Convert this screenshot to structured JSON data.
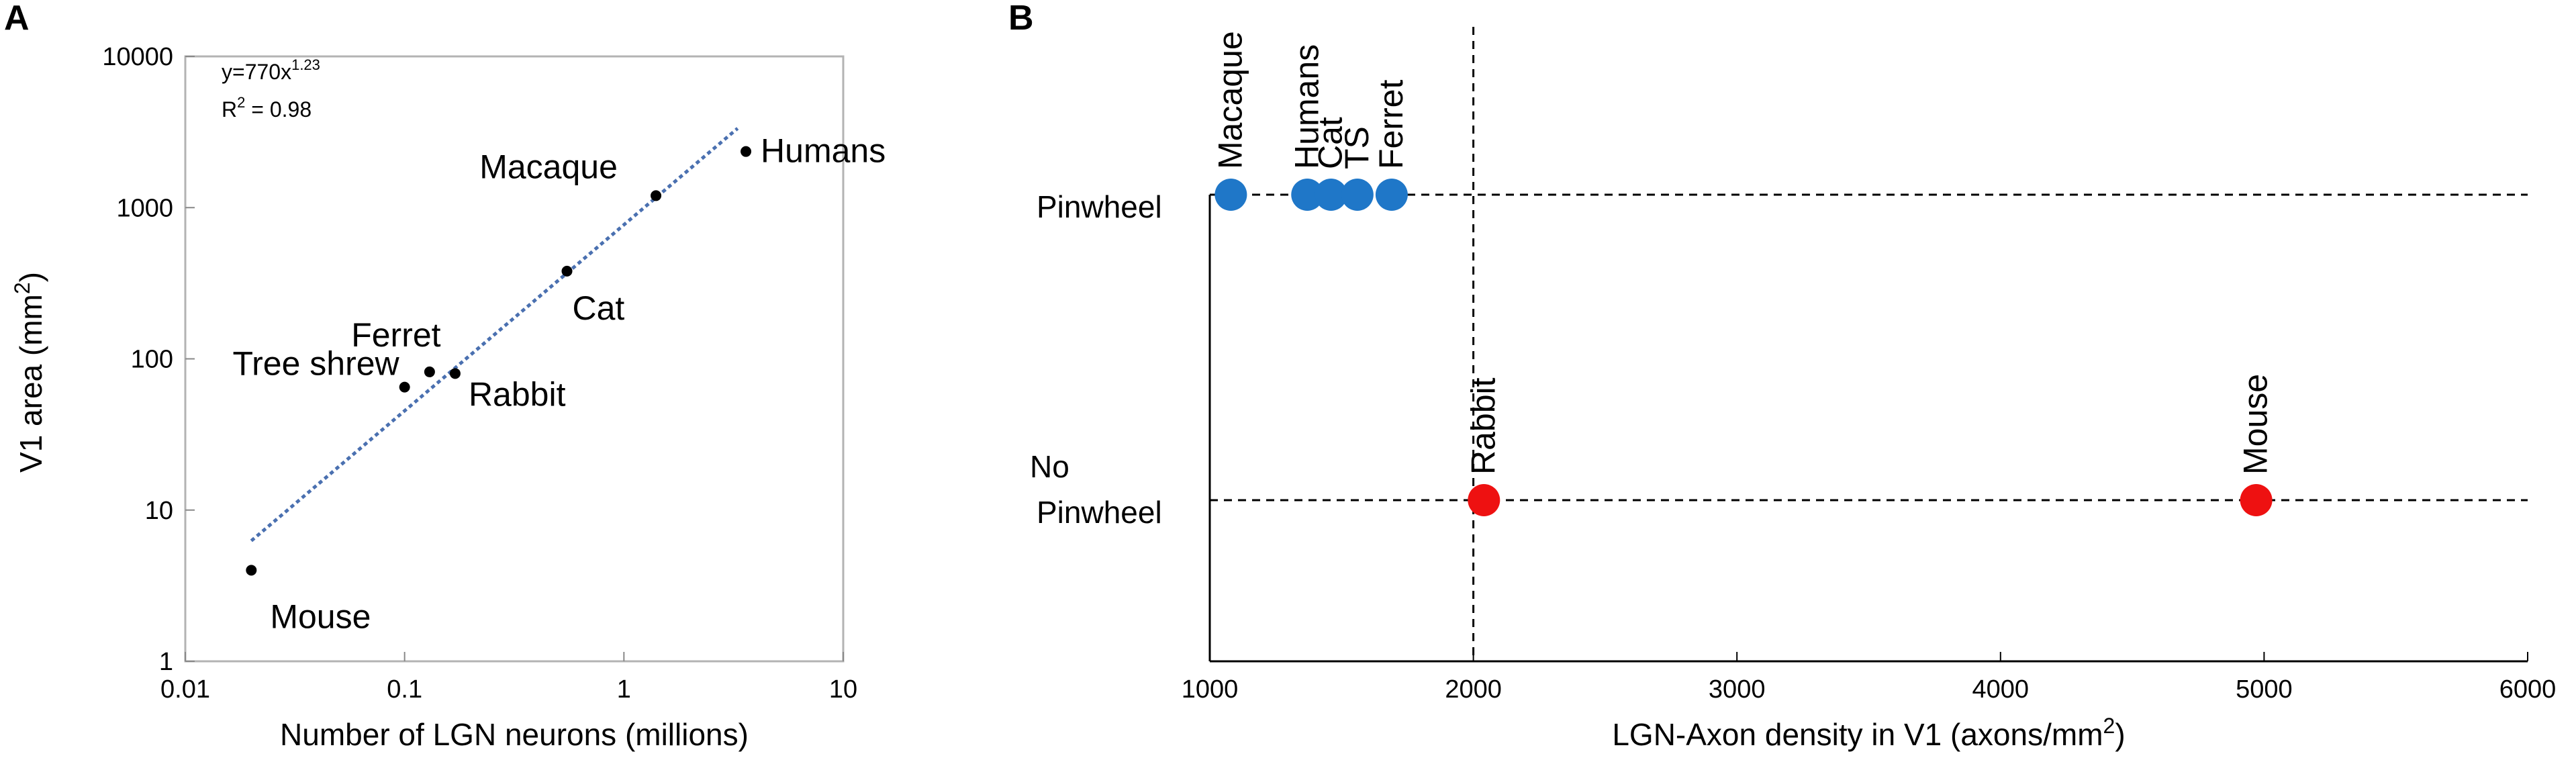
{
  "panels": {
    "a_label": "A",
    "b_label": "B"
  },
  "chart_data": [
    {
      "type": "scatter",
      "scale": "log-log",
      "xlabel": "Number of LGN neurons (millions)",
      "ylabel_main": "V1 area (mm",
      "ylabel_sup": "2",
      "ylabel_end": ")",
      "xlim": [
        0.01,
        10
      ],
      "ylim": [
        1,
        10000
      ],
      "x_ticks": [
        {
          "v": 0.01,
          "label": "0.01"
        },
        {
          "v": 0.1,
          "label": "0.1"
        },
        {
          "v": 1,
          "label": "1"
        },
        {
          "v": 10,
          "label": "10"
        }
      ],
      "y_ticks": [
        {
          "v": 1,
          "label": "1"
        },
        {
          "v": 10,
          "label": "10"
        },
        {
          "v": 100,
          "label": "100"
        },
        {
          "v": 1000,
          "label": "1000"
        },
        {
          "v": 10000,
          "label": "10000"
        }
      ],
      "points": [
        {
          "name": "Mouse",
          "x": 0.02,
          "y": 4
        },
        {
          "name": "Tree shrew",
          "x": 0.1,
          "y": 65
        },
        {
          "name": "Ferret",
          "x": 0.13,
          "y": 82
        },
        {
          "name": "Rabbit",
          "x": 0.17,
          "y": 80
        },
        {
          "name": "Cat",
          "x": 0.55,
          "y": 380
        },
        {
          "name": "Macaque",
          "x": 1.4,
          "y": 1200
        },
        {
          "name": "Humans",
          "x": 3.6,
          "y": 2350
        }
      ],
      "fit": {
        "a": 770,
        "b": 1.23,
        "x_range": [
          0.02,
          3.3
        ],
        "color": "#4a70b0",
        "equation_base": "y=770x",
        "equation_exp": "1.23",
        "r2_base": "R",
        "r2_sup": "2",
        "r2_rest": " = 0.98"
      }
    },
    {
      "type": "scatter",
      "xlabel_main": "LGN-Axon density in V1 (axons/mm",
      "xlabel_sup": "2",
      "xlabel_end": ")",
      "xlim": [
        1000,
        6000
      ],
      "x_ticks": [
        {
          "v": 1000,
          "label": "1000"
        },
        {
          "v": 2000,
          "label": "2000"
        },
        {
          "v": 3000,
          "label": "3000"
        },
        {
          "v": 4000,
          "label": "4000"
        },
        {
          "v": 5000,
          "label": "5000"
        },
        {
          "v": 6000,
          "label": "6000"
        }
      ],
      "categories": [
        {
          "key": "pinwheel",
          "lines": [
            "Pinwheel"
          ]
        },
        {
          "key": "no_pinwheel",
          "lines": [
            "No",
            "Pinwheel"
          ]
        }
      ],
      "threshold_x": 2000,
      "points": [
        {
          "name": "Macaque",
          "category": "pinwheel",
          "x": 1080,
          "color": "#1f77c8"
        },
        {
          "name": "Humans",
          "category": "pinwheel",
          "x": 1370,
          "color": "#1f77c8"
        },
        {
          "name": "Cat",
          "category": "pinwheel",
          "x": 1460,
          "color": "#1f77c8"
        },
        {
          "name": "TS",
          "category": "pinwheel",
          "x": 1560,
          "color": "#1f77c8"
        },
        {
          "name": "Ferret",
          "category": "pinwheel",
          "x": 1690,
          "color": "#1f77c8"
        },
        {
          "name": "Rabbit",
          "category": "no_pinwheel",
          "x": 2040,
          "color": "#ee1111"
        },
        {
          "name": "Mouse",
          "category": "no_pinwheel",
          "x": 4970,
          "color": "#ee1111"
        }
      ]
    }
  ]
}
